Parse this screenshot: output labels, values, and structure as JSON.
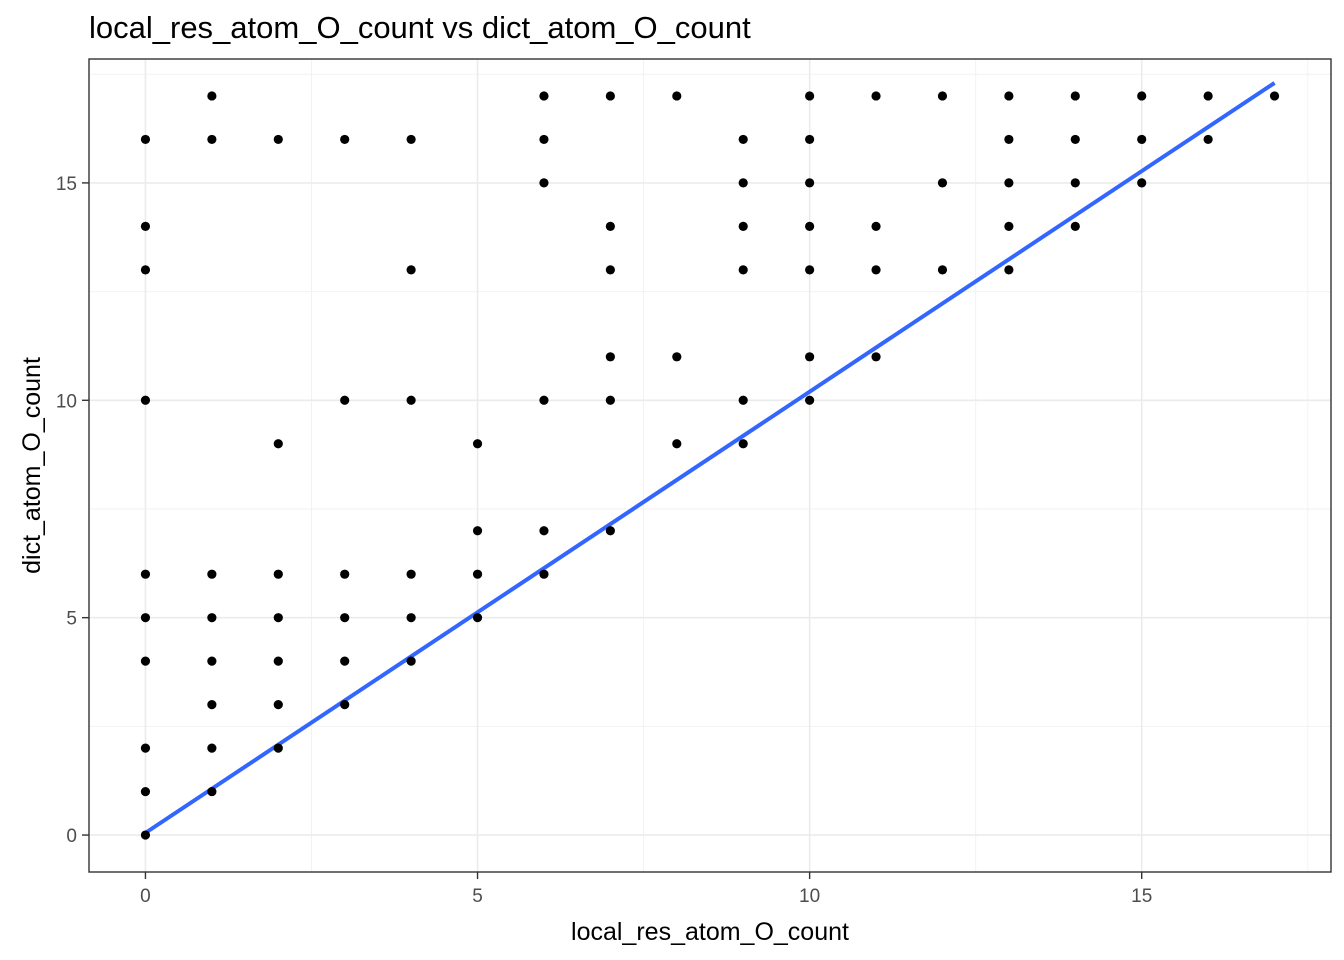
{
  "chart_data": {
    "type": "scatter",
    "title": "local_res_atom_O_count vs dict_atom_O_count",
    "xlabel": "local_res_atom_O_count",
    "ylabel": "dict_atom_O_count",
    "xlim": [
      -0.85,
      17.85
    ],
    "ylim": [
      -0.85,
      17.85
    ],
    "x_ticks": [
      0,
      5,
      10,
      15
    ],
    "y_ticks": [
      0,
      5,
      10,
      15
    ],
    "grid": true,
    "point_color": "#000000",
    "fit_line": {
      "color": "#3366ff",
      "x": [
        0,
        17
      ],
      "y": [
        0.05,
        17.3
      ]
    },
    "points": [
      [
        0,
        0
      ],
      [
        0,
        1
      ],
      [
        0,
        2
      ],
      [
        0,
        4
      ],
      [
        0,
        5
      ],
      [
        0,
        6
      ],
      [
        0,
        10
      ],
      [
        0,
        13
      ],
      [
        0,
        14
      ],
      [
        0,
        16
      ],
      [
        1,
        1
      ],
      [
        1,
        2
      ],
      [
        1,
        3
      ],
      [
        1,
        4
      ],
      [
        1,
        5
      ],
      [
        1,
        6
      ],
      [
        1,
        16
      ],
      [
        1,
        17
      ],
      [
        2,
        2
      ],
      [
        2,
        3
      ],
      [
        2,
        4
      ],
      [
        2,
        5
      ],
      [
        2,
        6
      ],
      [
        2,
        9
      ],
      [
        2,
        16
      ],
      [
        3,
        3
      ],
      [
        3,
        4
      ],
      [
        3,
        5
      ],
      [
        3,
        6
      ],
      [
        3,
        10
      ],
      [
        3,
        16
      ],
      [
        4,
        4
      ],
      [
        4,
        5
      ],
      [
        4,
        6
      ],
      [
        4,
        10
      ],
      [
        4,
        13
      ],
      [
        4,
        16
      ],
      [
        5,
        5
      ],
      [
        5,
        6
      ],
      [
        5,
        7
      ],
      [
        5,
        9
      ],
      [
        6,
        6
      ],
      [
        6,
        7
      ],
      [
        6,
        10
      ],
      [
        6,
        15
      ],
      [
        6,
        16
      ],
      [
        6,
        17
      ],
      [
        7,
        7
      ],
      [
        7,
        10
      ],
      [
        7,
        11
      ],
      [
        7,
        13
      ],
      [
        7,
        14
      ],
      [
        7,
        17
      ],
      [
        8,
        9
      ],
      [
        8,
        11
      ],
      [
        8,
        17
      ],
      [
        9,
        9
      ],
      [
        9,
        10
      ],
      [
        9,
        13
      ],
      [
        9,
        14
      ],
      [
        9,
        15
      ],
      [
        9,
        16
      ],
      [
        10,
        10
      ],
      [
        10,
        11
      ],
      [
        10,
        13
      ],
      [
        10,
        14
      ],
      [
        10,
        15
      ],
      [
        10,
        16
      ],
      [
        10,
        17
      ],
      [
        11,
        11
      ],
      [
        11,
        13
      ],
      [
        11,
        14
      ],
      [
        11,
        17
      ],
      [
        12,
        13
      ],
      [
        12,
        15
      ],
      [
        12,
        17
      ],
      [
        13,
        13
      ],
      [
        13,
        14
      ],
      [
        13,
        15
      ],
      [
        13,
        16
      ],
      [
        13,
        17
      ],
      [
        14,
        14
      ],
      [
        14,
        15
      ],
      [
        14,
        16
      ],
      [
        14,
        17
      ],
      [
        15,
        15
      ],
      [
        15,
        16
      ],
      [
        15,
        17
      ],
      [
        16,
        16
      ],
      [
        16,
        17
      ],
      [
        17,
        17
      ]
    ]
  }
}
